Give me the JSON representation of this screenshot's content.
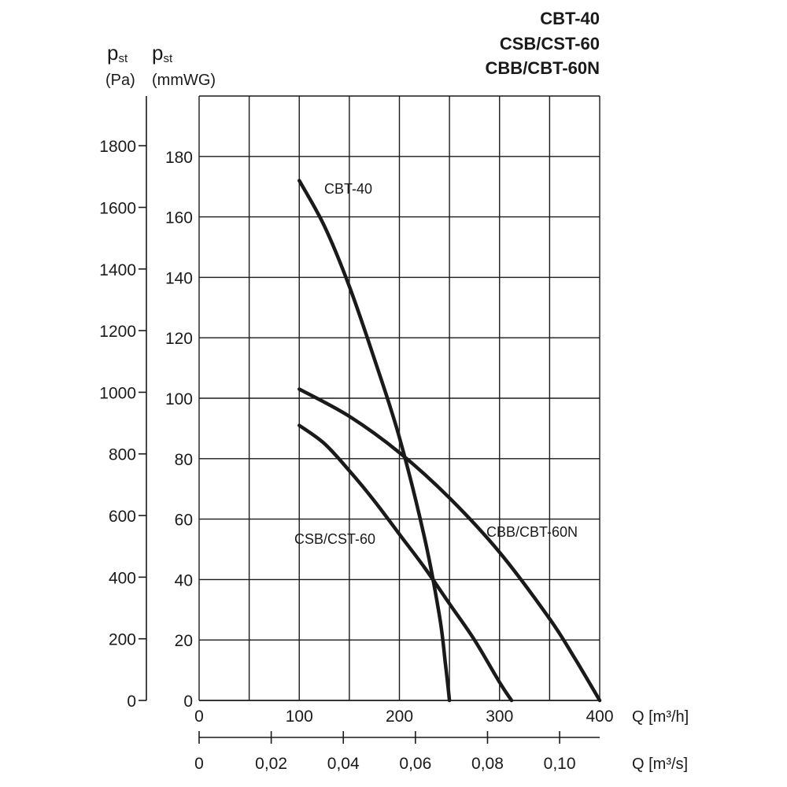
{
  "chart_data": {
    "type": "line",
    "title_lines": [
      "CBT-40",
      "CSB/CST-60",
      "CBB/CBT-60N"
    ],
    "y_axis_pa": {
      "label": "p",
      "label_sub": "st",
      "unit": "(Pa)",
      "ticks": [
        0,
        200,
        400,
        600,
        800,
        1000,
        1200,
        1400,
        1600,
        1800
      ],
      "tick_labels": [
        "0",
        "200",
        "400",
        "600",
        "800",
        "1000",
        "1200",
        "1400",
        "1600",
        "1800"
      ]
    },
    "y_axis_mmwg": {
      "label": "p",
      "label_sub": "st",
      "unit": "(mmWG)",
      "range": [
        0,
        200
      ],
      "ticks": [
        0,
        20,
        40,
        60,
        80,
        100,
        120,
        140,
        160,
        180
      ],
      "tick_labels": [
        "0",
        "20",
        "40",
        "60",
        "80",
        "100",
        "120",
        "140",
        "160",
        "180"
      ]
    },
    "x_axis_m3h": {
      "label": "Q [m³/h]",
      "range": [
        0,
        400
      ],
      "ticks": [
        0,
        100,
        200,
        300,
        400
      ],
      "tick_labels": [
        "0",
        "100",
        "200",
        "300",
        "400"
      ],
      "grid_step": 50
    },
    "x_axis_m3s": {
      "label": "Q [m³/s]",
      "ticks": [
        0,
        0.02,
        0.04,
        0.06,
        0.08,
        0.1
      ],
      "tick_labels": [
        "0",
        "0,02",
        "0,04",
        "0,06",
        "0,08",
        "0,10"
      ]
    },
    "grid": true,
    "series": [
      {
        "name": "CBT-40",
        "x": [
          100,
          125,
          150,
          175,
          200,
          225,
          240,
          246,
          250
        ],
        "y": [
          172,
          157,
          137,
          113,
          87,
          54,
          28,
          12,
          0
        ]
      },
      {
        "name": "CSB/CST-60",
        "x": [
          100,
          125,
          150,
          175,
          200,
          225,
          250,
          275,
          300,
          312
        ],
        "y": [
          91,
          85,
          76,
          66,
          55,
          44,
          32,
          20,
          6,
          0
        ]
      },
      {
        "name": "CBB/CBT-60N",
        "x": [
          100,
          150,
          200,
          250,
          300,
          350,
          375,
          400
        ],
        "y": [
          103,
          94,
          82,
          67,
          49,
          27,
          14,
          0
        ]
      }
    ]
  }
}
